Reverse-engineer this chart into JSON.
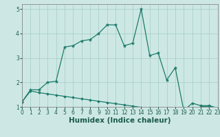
{
  "title": "",
  "xlabel": "Humidex (Indice chaleur)",
  "background_color": "#cde8e4",
  "grid_color": "#aacfca",
  "line_color": "#1a7a6a",
  "xlim": [
    0,
    23
  ],
  "ylim": [
    1.0,
    5.2
  ],
  "x": [
    0,
    1,
    2,
    3,
    4,
    5,
    6,
    7,
    8,
    9,
    10,
    11,
    12,
    13,
    14,
    15,
    16,
    17,
    18,
    19,
    20,
    21,
    22,
    23
  ],
  "line1_y": [
    1.2,
    1.7,
    1.7,
    2.0,
    2.05,
    3.45,
    3.5,
    3.7,
    3.75,
    4.0,
    4.35,
    4.35,
    3.5,
    3.6,
    5.0,
    3.1,
    3.2,
    2.1,
    2.6,
    0.85,
    1.15,
    1.05,
    1.05,
    0.95
  ],
  "line2_y": [
    1.2,
    1.65,
    1.58,
    1.53,
    1.48,
    1.43,
    1.38,
    1.33,
    1.28,
    1.23,
    1.18,
    1.13,
    1.08,
    1.03,
    0.98,
    0.93,
    0.9,
    0.88,
    0.85,
    0.82,
    0.8,
    1.0,
    1.03,
    0.93
  ],
  "yticks": [
    1,
    2,
    3,
    4,
    5
  ],
  "xticks": [
    0,
    1,
    2,
    3,
    4,
    5,
    6,
    7,
    8,
    9,
    10,
    11,
    12,
    13,
    14,
    15,
    16,
    17,
    18,
    19,
    20,
    21,
    22,
    23
  ],
  "tick_fontsize": 5.5,
  "label_fontsize": 7.5
}
